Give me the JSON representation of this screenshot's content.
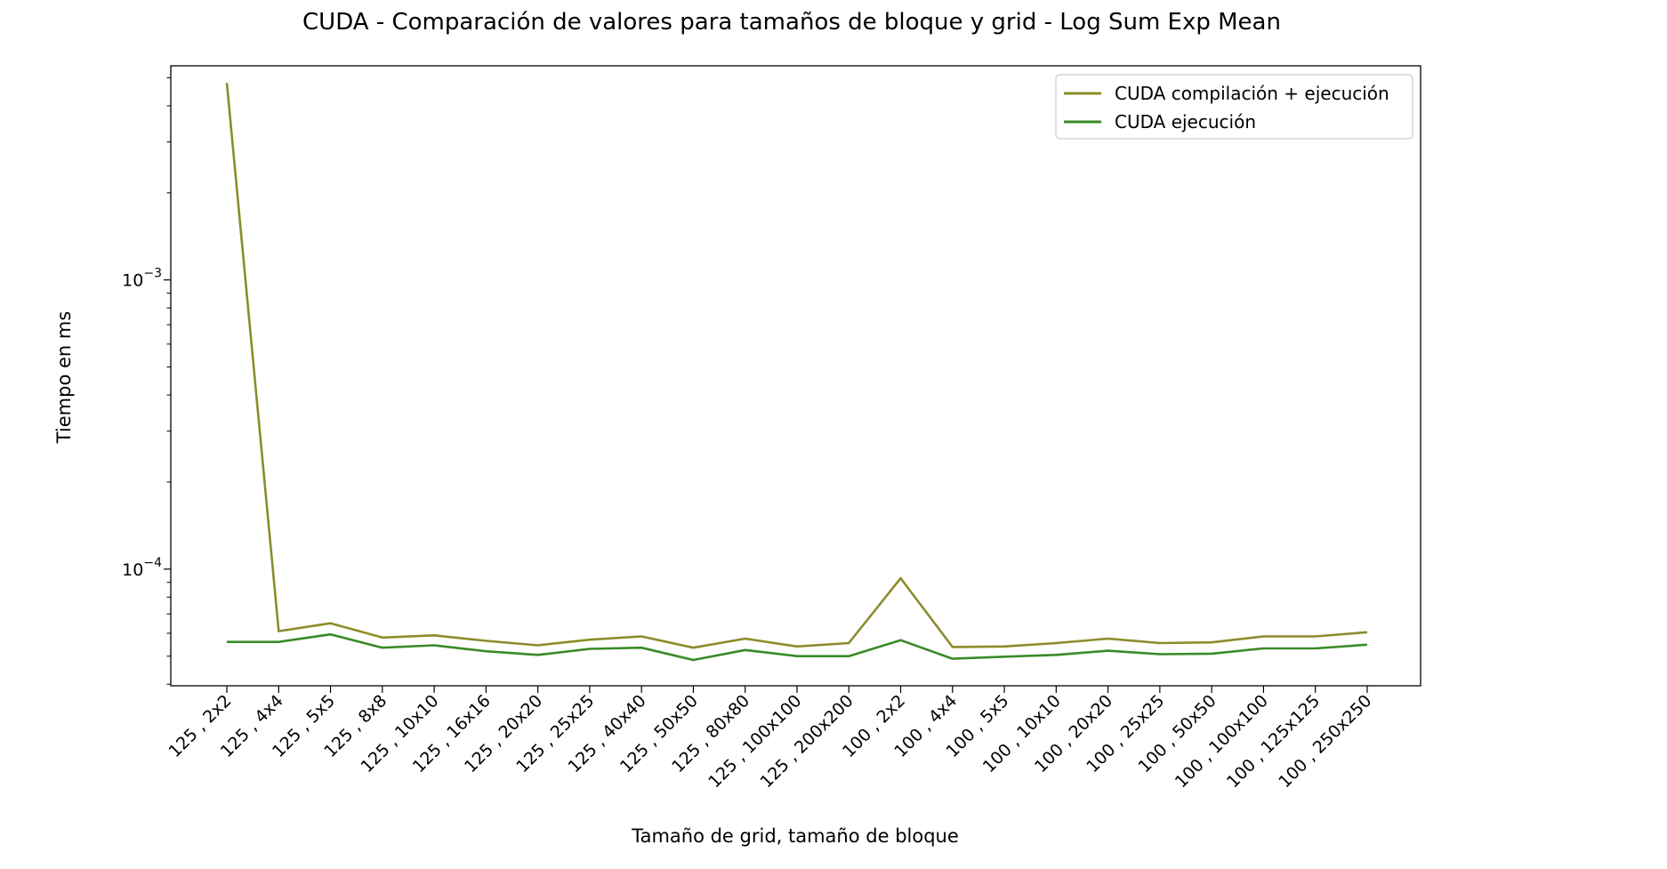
{
  "chart_data": {
    "type": "line",
    "title": "CUDA - Comparación de valores para tamaños de bloque y grid - Log Sum Exp Mean",
    "xlabel": "Tamaño de grid, tamaño de bloque",
    "ylabel": "Tiempo en ms",
    "yscale": "log",
    "ylim": [
      3.95e-05,
      0.0055
    ],
    "yticks": [
      {
        "value": 0.001,
        "base": "10",
        "exp": "−3"
      },
      {
        "value": 0.0001,
        "base": "10",
        "exp": "−4"
      }
    ],
    "categories": [
      "125 , 2x2",
      "125 , 4x4",
      "125 , 5x5",
      "125 , 8x8",
      "125 , 10x10",
      "125 , 16x16",
      "125 , 20x20",
      "125 , 25x25",
      "125 , 40x40",
      "125 , 50x50",
      "125 , 80x80",
      "125 , 100x100",
      "125 , 200x200",
      "100 , 2x2",
      "100 , 4x4",
      "100 , 5x5",
      "100 , 10x10",
      "100 , 20x20",
      "100 , 25x25",
      "100 , 50x50",
      "100 , 100x100",
      "100 , 125x125",
      "100 , 250x250"
    ],
    "series": [
      {
        "name": "CUDA compilación + ejecución",
        "color": "#8c8c2a",
        "values": [
          0.0048,
          6.1e-05,
          6.5e-05,
          5.8e-05,
          5.9e-05,
          5.65e-05,
          5.45e-05,
          5.7e-05,
          5.85e-05,
          5.35e-05,
          5.75e-05,
          5.4e-05,
          5.55e-05,
          9.3e-05,
          5.38e-05,
          5.4e-05,
          5.55e-05,
          5.75e-05,
          5.55e-05,
          5.58e-05,
          5.85e-05,
          5.85e-05,
          6.05e-05
        ]
      },
      {
        "name": "CUDA ejecución",
        "color": "#3a8a28",
        "values": [
          5.6e-05,
          5.6e-05,
          5.95e-05,
          5.35e-05,
          5.45e-05,
          5.2e-05,
          5.05e-05,
          5.3e-05,
          5.35e-05,
          4.85e-05,
          5.25e-05,
          5e-05,
          5e-05,
          5.68e-05,
          4.9e-05,
          4.98e-05,
          5.05e-05,
          5.22e-05,
          5.08e-05,
          5.1e-05,
          5.32e-05,
          5.32e-05,
          5.48e-05
        ]
      }
    ],
    "legend_position": "top-right",
    "grid": false
  }
}
